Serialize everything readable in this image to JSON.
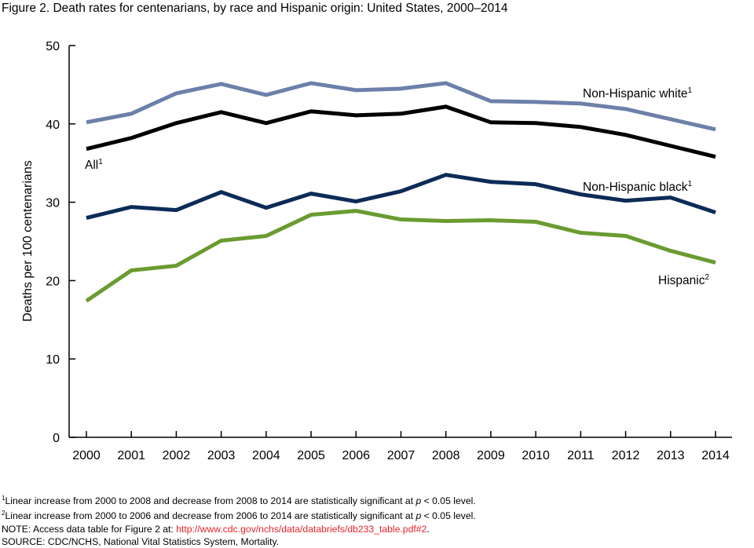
{
  "title": "Figure 2. Death rates for centenarians, by race and Hispanic origin: United States, 2000–2014",
  "chart_data": {
    "type": "line",
    "title": "Figure 2. Death rates for centenarians, by race and Hispanic origin: United States, 2000–2014",
    "xlabel": "",
    "ylabel": "Deaths per 100 centenarians",
    "ylim": [
      0,
      50
    ],
    "yticks": [
      "0",
      "10",
      "20",
      "30",
      "40",
      "50"
    ],
    "x": [
      "2000",
      "2001",
      "2002",
      "2003",
      "2004",
      "2005",
      "2006",
      "2007",
      "2008",
      "2009",
      "2010",
      "2011",
      "2012",
      "2013",
      "2014"
    ],
    "grid": false,
    "series": [
      {
        "name": "Non-Hispanic white",
        "sup": "1",
        "color": "#6c80a9",
        "values": [
          40.2,
          41.3,
          43.9,
          45.1,
          43.7,
          45.2,
          44.3,
          44.5,
          45.2,
          42.9,
          42.8,
          42.6,
          41.9,
          40.6,
          39.3
        ]
      },
      {
        "name": "All",
        "sup": "1",
        "color": "#000000",
        "values": [
          36.8,
          38.2,
          40.1,
          41.5,
          40.1,
          41.6,
          41.1,
          41.3,
          42.2,
          40.2,
          40.1,
          39.6,
          38.6,
          37.2,
          35.8
        ]
      },
      {
        "name": "Non-Hispanic black",
        "sup": "1",
        "color": "#0c2b57",
        "values": [
          28.0,
          29.4,
          29.0,
          31.3,
          29.3,
          31.1,
          30.1,
          31.4,
          33.5,
          32.6,
          32.3,
          31.0,
          30.2,
          30.6,
          28.7
        ]
      },
      {
        "name": "Hispanic",
        "sup": "2",
        "color": "#6a9b31",
        "values": [
          17.4,
          21.3,
          21.9,
          25.1,
          25.7,
          28.4,
          28.9,
          27.8,
          27.6,
          27.7,
          27.5,
          26.1,
          25.7,
          23.8,
          22.3
        ]
      }
    ]
  },
  "footnotes": {
    "f1": "Linear increase from 2000 to 2008 and decrease from 2008 to 2014 are statistically significant at ",
    "f2": "Linear increase from 2000 to 2006 and decrease from 2006 to 2014 are statistically significant at ",
    "p": "p",
    "tail": " < 0.05 level.",
    "sup1": "1",
    "sup2": "2",
    "note_prefix": "NOTE: Access data table for Figure 2 at: ",
    "note_link": "http://www.cdc.gov/nchs/data/databriefs/db233_table.pdf#2",
    "note_suffix": ".",
    "source": "SOURCE: CDC/NCHS, National Vital Statistics System, Mortality."
  }
}
